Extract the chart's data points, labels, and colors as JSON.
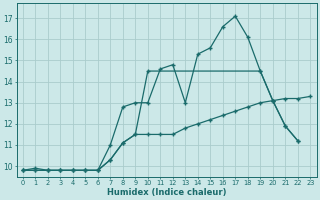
{
  "xlabel": "Humidex (Indice chaleur)",
  "bg_color": "#cce8e8",
  "grid_color": "#aacccc",
  "line_color": "#1a6b6b",
  "xlim": [
    -0.5,
    23.5
  ],
  "ylim": [
    9.5,
    17.7
  ],
  "xticks": [
    0,
    1,
    2,
    3,
    4,
    5,
    6,
    7,
    8,
    9,
    10,
    11,
    12,
    13,
    14,
    15,
    16,
    17,
    18,
    19,
    20,
    21,
    22,
    23
  ],
  "yticks": [
    10,
    11,
    12,
    13,
    14,
    15,
    16,
    17
  ],
  "series1_x": [
    0,
    1,
    2,
    3,
    4,
    5,
    6,
    7,
    8,
    9,
    10,
    11,
    12,
    13,
    14,
    15,
    16,
    17,
    18,
    19,
    20,
    21,
    22,
    23
  ],
  "series1_y": [
    9.8,
    9.9,
    9.8,
    9.8,
    9.8,
    9.8,
    9.8,
    10.3,
    11.1,
    11.5,
    11.5,
    11.5,
    11.5,
    11.8,
    12.0,
    12.2,
    12.4,
    12.6,
    12.8,
    13.0,
    13.1,
    13.2,
    13.2,
    13.3
  ],
  "series2_x": [
    0,
    1,
    2,
    3,
    4,
    5,
    6,
    7,
    8,
    9,
    10,
    11,
    12,
    13,
    14,
    15,
    16,
    17,
    18,
    19,
    20,
    21,
    22
  ],
  "series2_y": [
    9.8,
    9.8,
    9.8,
    9.8,
    9.8,
    9.8,
    9.8,
    11.0,
    12.8,
    13.0,
    13.0,
    14.6,
    14.8,
    13.0,
    15.3,
    15.6,
    16.6,
    17.1,
    16.1,
    14.5,
    13.1,
    11.9,
    11.2
  ],
  "series3_x": [
    0,
    1,
    2,
    3,
    4,
    5,
    6,
    7,
    8,
    9,
    10,
    19,
    20,
    21,
    22
  ],
  "series3_y": [
    9.8,
    9.8,
    9.8,
    9.8,
    9.8,
    9.8,
    9.8,
    10.3,
    11.1,
    11.5,
    14.5,
    14.5,
    13.1,
    11.9,
    11.2
  ]
}
